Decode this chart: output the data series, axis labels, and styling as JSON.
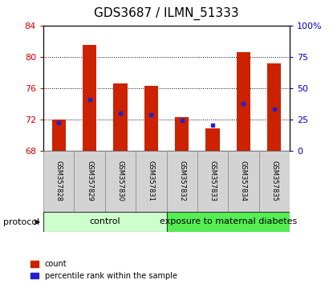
{
  "title": "GDS3687 / ILMN_51333",
  "samples": [
    "GSM357828",
    "GSM357829",
    "GSM357830",
    "GSM357831",
    "GSM357832",
    "GSM357833",
    "GSM357834",
    "GSM357835"
  ],
  "bar_bottom": 68,
  "bar_tops": [
    72.0,
    81.5,
    76.6,
    76.3,
    72.3,
    70.8,
    80.6,
    79.2
  ],
  "percentile_values": [
    71.6,
    74.5,
    72.8,
    72.6,
    71.9,
    71.2,
    74.0,
    73.3
  ],
  "ylim_left": [
    68,
    84
  ],
  "ylim_right": [
    0,
    100
  ],
  "yticks_left": [
    68,
    72,
    76,
    80,
    84
  ],
  "yticks_right": [
    0,
    25,
    50,
    75,
    100
  ],
  "ytick_labels_right": [
    "0",
    "25",
    "50",
    "75",
    "100%"
  ],
  "bar_color": "#cc2200",
  "percentile_color": "#2222cc",
  "grid_color": "#000000",
  "bg_color": "#ffffff",
  "control_samples": 4,
  "group_labels": [
    "control",
    "exposure to maternal diabetes"
  ],
  "group_colors_light": "#ccffcc",
  "group_colors_dark": "#55ee55",
  "left_tick_color": "#cc0000",
  "right_tick_color": "#0000cc",
  "title_fontsize": 11,
  "tick_fontsize": 8,
  "sample_fontsize": 6,
  "group_label_fontsize": 8,
  "legend_fontsize": 7,
  "protocol_fontsize": 8
}
